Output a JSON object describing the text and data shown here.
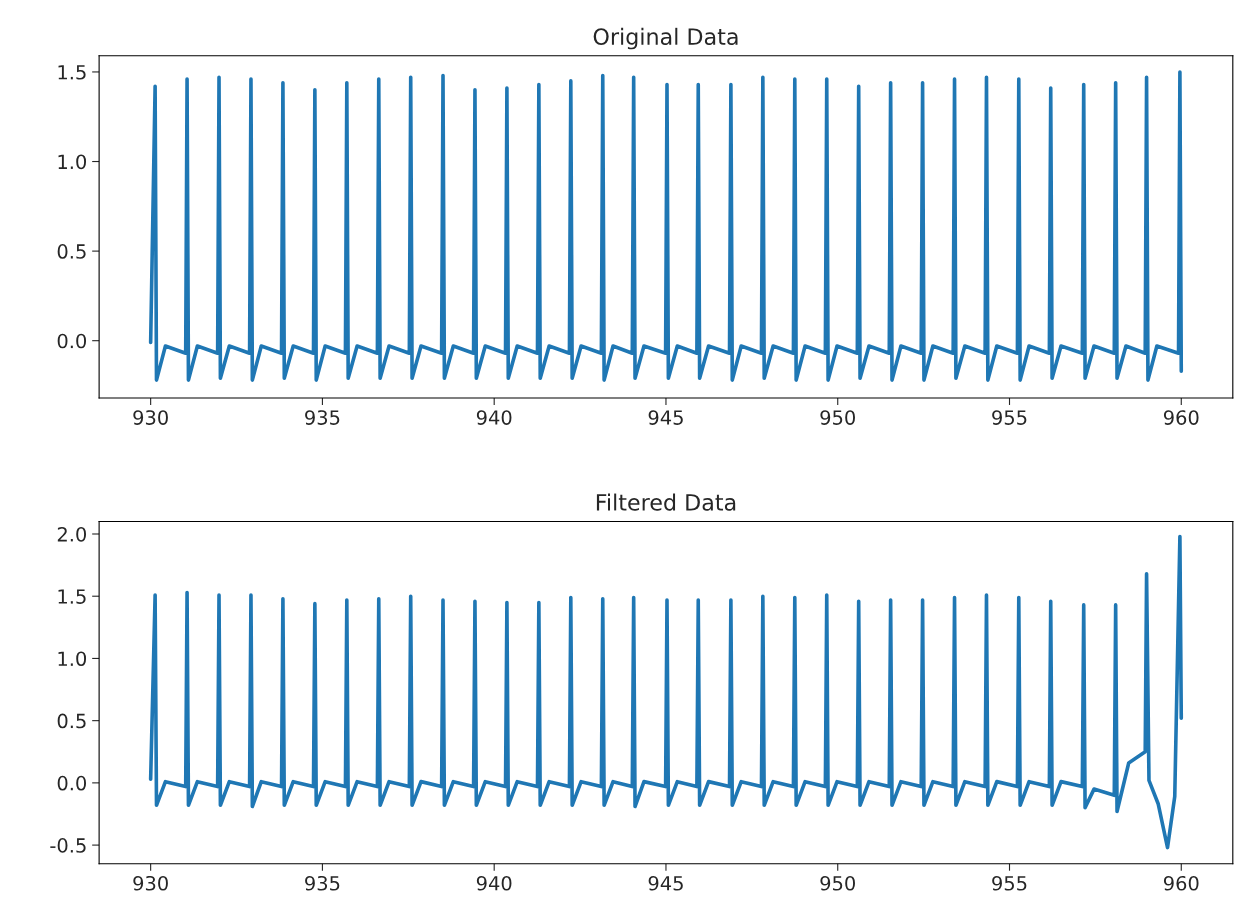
{
  "chart_data": [
    {
      "type": "line",
      "title": "Original Data",
      "xlim": [
        928.5,
        961.5
      ],
      "ylim": [
        -0.32,
        1.59
      ],
      "xticks": [
        930,
        935,
        940,
        945,
        950,
        955,
        960
      ],
      "yticks": [
        {
          "value": 0,
          "label": "0.0"
        },
        0.5,
        {
          "value": 1,
          "label": "1.0"
        },
        1.5
      ],
      "grid": false,
      "series": [
        {
          "color": "#1f77b4",
          "x": [
            930.0,
            930.13,
            930.17,
            930.43,
            931.02,
            931.06,
            931.1,
            931.36,
            931.95,
            931.99,
            932.03,
            932.29,
            932.88,
            932.92,
            932.96,
            933.22,
            933.81,
            933.85,
            933.89,
            934.15,
            934.74,
            934.78,
            934.82,
            935.08,
            935.67,
            935.71,
            935.75,
            936.01,
            936.6,
            936.64,
            936.68,
            936.94,
            937.53,
            937.57,
            937.61,
            937.87,
            938.47,
            938.51,
            938.55,
            938.81,
            939.4,
            939.44,
            939.48,
            939.74,
            940.33,
            940.37,
            940.41,
            940.67,
            941.26,
            941.3,
            941.34,
            941.6,
            942.19,
            942.23,
            942.27,
            942.53,
            943.12,
            943.16,
            943.2,
            943.46,
            944.02,
            944.06,
            944.1,
            944.36,
            944.99,
            945.03,
            945.07,
            945.33,
            945.9,
            945.94,
            945.98,
            946.24,
            946.85,
            946.89,
            946.93,
            947.19,
            947.78,
            947.82,
            947.86,
            948.12,
            948.71,
            948.75,
            948.79,
            949.05,
            949.64,
            949.68,
            949.72,
            949.98,
            950.57,
            950.61,
            950.65,
            950.91,
            951.5,
            951.54,
            951.58,
            951.84,
            952.43,
            952.47,
            952.51,
            952.77,
            953.36,
            953.4,
            953.44,
            953.7,
            954.29,
            954.33,
            954.37,
            954.63,
            955.23,
            955.27,
            955.31,
            955.57,
            956.16,
            956.2,
            956.24,
            956.5,
            957.12,
            957.16,
            957.2,
            957.46,
            958.05,
            958.09,
            958.13,
            958.39,
            958.95,
            958.99,
            959.03,
            959.29,
            959.92,
            959.96,
            960.0
          ],
          "values": [
            -0.01,
            1.42,
            -0.22,
            -0.03,
            -0.07,
            1.46,
            -0.22,
            -0.03,
            -0.07,
            1.47,
            -0.21,
            -0.03,
            -0.07,
            1.46,
            -0.22,
            -0.03,
            -0.07,
            1.44,
            -0.21,
            -0.03,
            -0.07,
            1.4,
            -0.22,
            -0.03,
            -0.07,
            1.44,
            -0.21,
            -0.03,
            -0.07,
            1.46,
            -0.21,
            -0.03,
            -0.07,
            1.47,
            -0.21,
            -0.03,
            -0.07,
            1.48,
            -0.21,
            -0.03,
            -0.07,
            1.4,
            -0.21,
            -0.03,
            -0.07,
            1.41,
            -0.21,
            -0.03,
            -0.07,
            1.43,
            -0.21,
            -0.03,
            -0.07,
            1.45,
            -0.21,
            -0.03,
            -0.07,
            1.48,
            -0.22,
            -0.03,
            -0.07,
            1.47,
            -0.21,
            -0.03,
            -0.07,
            1.43,
            -0.21,
            -0.03,
            -0.07,
            1.43,
            -0.21,
            -0.03,
            -0.07,
            1.43,
            -0.22,
            -0.03,
            -0.07,
            1.47,
            -0.21,
            -0.03,
            -0.07,
            1.46,
            -0.22,
            -0.03,
            -0.07,
            1.46,
            -0.22,
            -0.03,
            -0.07,
            1.42,
            -0.21,
            -0.03,
            -0.07,
            1.44,
            -0.22,
            -0.03,
            -0.07,
            1.44,
            -0.22,
            -0.03,
            -0.07,
            1.46,
            -0.21,
            -0.03,
            -0.07,
            1.47,
            -0.22,
            -0.03,
            -0.07,
            1.46,
            -0.22,
            -0.03,
            -0.07,
            1.41,
            -0.21,
            -0.03,
            -0.07,
            1.43,
            -0.21,
            -0.03,
            -0.07,
            1.44,
            -0.21,
            -0.03,
            -0.07,
            1.47,
            -0.22,
            -0.03,
            -0.07,
            1.5,
            -0.17
          ]
        }
      ]
    },
    {
      "type": "line",
      "title": "Filtered Data",
      "xlim": [
        928.5,
        961.5
      ],
      "ylim": [
        -0.65,
        2.1
      ],
      "xticks": [
        930,
        935,
        940,
        945,
        950,
        955,
        960
      ],
      "yticks": [
        -0.5,
        {
          "value": 0,
          "label": "0.0"
        },
        0.5,
        {
          "value": 1,
          "label": "1.0"
        },
        1.5,
        {
          "value": 2,
          "label": "2.0"
        }
      ],
      "grid": false,
      "series": [
        {
          "color": "#1f77b4",
          "x": [
            930.0,
            930.13,
            930.17,
            930.43,
            931.02,
            931.06,
            931.1,
            931.36,
            931.95,
            931.99,
            932.03,
            932.29,
            932.88,
            932.92,
            932.96,
            933.22,
            933.81,
            933.85,
            933.89,
            934.15,
            934.74,
            934.78,
            934.82,
            935.08,
            935.67,
            935.71,
            935.75,
            936.01,
            936.6,
            936.64,
            936.68,
            936.94,
            937.53,
            937.57,
            937.61,
            937.87,
            938.47,
            938.51,
            938.55,
            938.81,
            939.4,
            939.44,
            939.48,
            939.74,
            940.33,
            940.37,
            940.41,
            940.67,
            941.26,
            941.3,
            941.34,
            941.6,
            942.19,
            942.23,
            942.27,
            942.53,
            943.12,
            943.16,
            943.2,
            943.46,
            944.02,
            944.06,
            944.1,
            944.36,
            944.99,
            945.03,
            945.07,
            945.33,
            945.9,
            945.94,
            945.98,
            946.24,
            946.85,
            946.89,
            946.93,
            947.19,
            947.78,
            947.82,
            947.86,
            948.12,
            948.71,
            948.75,
            948.79,
            949.05,
            949.64,
            949.68,
            949.72,
            949.98,
            950.57,
            950.61,
            950.65,
            950.91,
            951.5,
            951.54,
            951.58,
            951.84,
            952.43,
            952.47,
            952.51,
            952.77,
            953.36,
            953.4,
            953.44,
            953.7,
            954.29,
            954.33,
            954.37,
            954.63,
            955.23,
            955.27,
            955.31,
            955.57,
            956.16,
            956.2,
            956.24,
            956.5,
            957.12,
            957.16,
            957.2,
            957.46,
            958.05,
            958.09,
            958.13,
            958.47,
            958.95,
            958.99,
            959.06,
            959.33,
            959.6,
            959.81,
            959.96,
            960.0
          ],
          "values": [
            0.03,
            1.51,
            -0.18,
            0.01,
            -0.03,
            1.53,
            -0.18,
            0.01,
            -0.03,
            1.51,
            -0.18,
            0.01,
            -0.03,
            1.51,
            -0.19,
            0.01,
            -0.03,
            1.48,
            -0.18,
            0.01,
            -0.03,
            1.44,
            -0.18,
            0.01,
            -0.03,
            1.47,
            -0.18,
            0.01,
            -0.03,
            1.48,
            -0.18,
            0.01,
            -0.03,
            1.5,
            -0.18,
            0.01,
            -0.03,
            1.47,
            -0.18,
            0.01,
            -0.03,
            1.46,
            -0.18,
            0.01,
            -0.03,
            1.45,
            -0.18,
            0.01,
            -0.03,
            1.45,
            -0.18,
            0.01,
            -0.03,
            1.49,
            -0.18,
            0.01,
            -0.03,
            1.48,
            -0.18,
            0.01,
            -0.03,
            1.49,
            -0.19,
            0.01,
            -0.03,
            1.47,
            -0.18,
            0.01,
            -0.03,
            1.47,
            -0.18,
            0.01,
            -0.03,
            1.47,
            -0.18,
            0.01,
            -0.03,
            1.5,
            -0.18,
            0.01,
            -0.03,
            1.49,
            -0.18,
            0.01,
            -0.03,
            1.51,
            -0.18,
            0.01,
            -0.03,
            1.46,
            -0.18,
            0.01,
            -0.03,
            1.47,
            -0.18,
            0.01,
            -0.03,
            1.47,
            -0.18,
            0.01,
            -0.03,
            1.49,
            -0.18,
            0.01,
            -0.03,
            1.51,
            -0.18,
            0.01,
            -0.03,
            1.49,
            -0.18,
            0.01,
            -0.03,
            1.46,
            -0.18,
            0.01,
            -0.03,
            1.43,
            -0.2,
            -0.05,
            -0.1,
            1.43,
            -0.23,
            0.16,
            0.25,
            1.68,
            0.02,
            -0.17,
            -0.52,
            -0.11,
            1.98,
            0.52
          ]
        }
      ]
    }
  ]
}
